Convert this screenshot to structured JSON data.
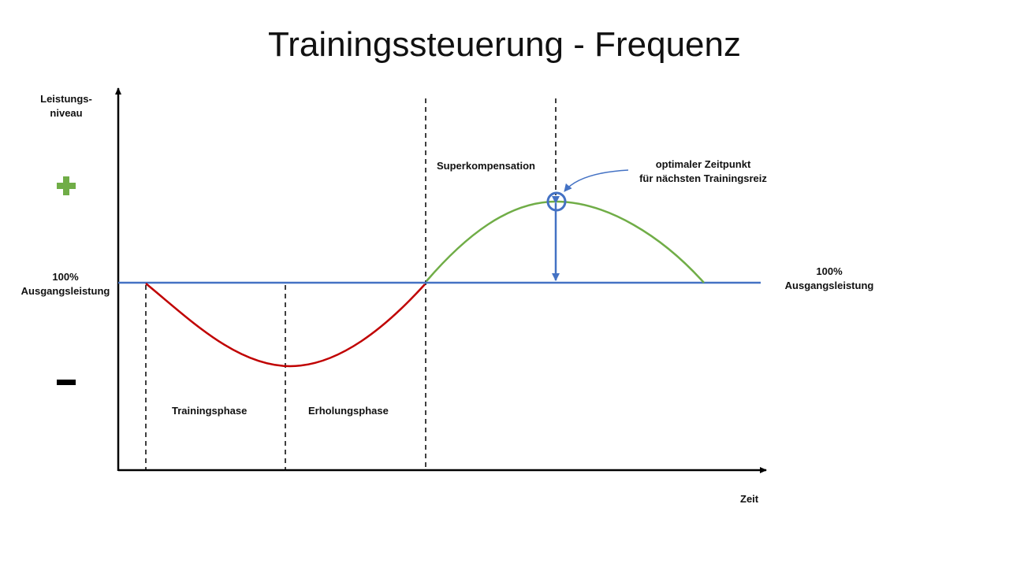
{
  "title": "Trainingssteuerung - Frequenz",
  "y_axis_label": [
    "Leistungs-",
    "niveau"
  ],
  "x_axis_label": "Zeit",
  "plus_symbol": "+",
  "minus_symbol": "–",
  "baseline_left_label": [
    "100%",
    "Ausgangsleistung"
  ],
  "baseline_right_label": [
    "100%",
    "Ausgangsleistung"
  ],
  "phases": {
    "training": "Trainingsphase",
    "recovery": "Erholungsphase",
    "supercompensation": "Superkompensation"
  },
  "annotation": [
    "optimaler Zeitpunkt",
    "für nächsten Trainingsreiz"
  ],
  "colors": {
    "baseline": "#4472C4",
    "dip_curve": "#C00000",
    "peak_curve": "#70AD47",
    "plus": "#70AD47",
    "axis": "#000000"
  }
}
